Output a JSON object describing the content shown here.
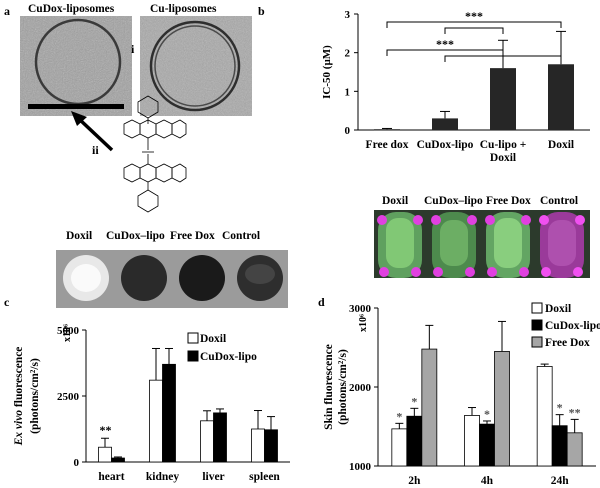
{
  "panels": {
    "a": {
      "letter": "a",
      "label_left": "CuDox-liposomes",
      "label_right": "Cu-liposomes",
      "roman_i": "i",
      "roman_ii": "ii"
    },
    "b": {
      "letter": "b"
    },
    "c": {
      "letter": "c",
      "photo_labels": [
        "Doxil",
        "CuDox–lipo",
        "Free Dox",
        "Control"
      ]
    },
    "d": {
      "letter": "d",
      "photo_labels": [
        "Doxil",
        "CuDox–lipo",
        "Free Dox",
        "Control"
      ]
    }
  },
  "chart_data": [
    {
      "id": "b",
      "type": "bar",
      "categories": [
        "Free dox",
        "CuDox-lipo",
        "Cu-lipo +\nDoxil",
        "Doxil"
      ],
      "values": [
        0.02,
        0.3,
        1.6,
        1.7
      ],
      "errors": [
        0.02,
        0.18,
        0.72,
        0.85
      ],
      "ylabel": "IC-50 (µM)",
      "ylim": [
        0,
        3
      ],
      "yticks": [
        "0",
        "1",
        "2",
        "3"
      ],
      "bar_color": "#262626",
      "annotations": [
        "***",
        "***"
      ]
    },
    {
      "id": "c",
      "type": "bar",
      "categories": [
        "heart",
        "kidney",
        "liver",
        "spleen"
      ],
      "series": [
        {
          "name": "Doxil",
          "values": [
            560,
            3100,
            1560,
            1250
          ],
          "errors": [
            340,
            1200,
            380,
            700
          ],
          "color": "#ffffff"
        },
        {
          "name": "CuDox-lipo",
          "values": [
            150,
            3700,
            1860,
            1220
          ],
          "errors": [
            40,
            600,
            150,
            500
          ],
          "color": "#000000"
        }
      ],
      "ylabel_italic": "Ex vivo",
      "ylabel_rest": " fluorescence",
      "ylabel_units": "(photons/cm²/s)",
      "multiplier": "x10⁶",
      "ylim": [
        0,
        5000
      ],
      "yticks": [
        "0",
        "2500",
        "5000"
      ],
      "annotations": [
        "**"
      ]
    },
    {
      "id": "d",
      "type": "bar",
      "categories": [
        "2h",
        "4h",
        "24h"
      ],
      "series": [
        {
          "name": "Doxil",
          "values": [
            1470,
            1640,
            2260
          ],
          "errors": [
            70,
            100,
            30
          ],
          "color": "#ffffff"
        },
        {
          "name": "CuDox-lipo",
          "values": [
            1630,
            1530,
            1510
          ],
          "errors": [
            100,
            40,
            140
          ],
          "color": "#000000"
        },
        {
          "name": "Free Dox",
          "values": [
            2480,
            2450,
            1420
          ],
          "errors": [
            300,
            380,
            170
          ],
          "color": "#a6a6a6"
        }
      ],
      "ylabel": "Skin fluorescence",
      "ylabel_units": "(photons/cm²/s)",
      "multiplier": "x10⁶",
      "ylim": [
        1000,
        3000
      ],
      "yticks": [
        "1000",
        "2000",
        "3000"
      ],
      "annotations": [
        "*",
        "*",
        "*",
        "*",
        "*",
        "**"
      ]
    }
  ]
}
